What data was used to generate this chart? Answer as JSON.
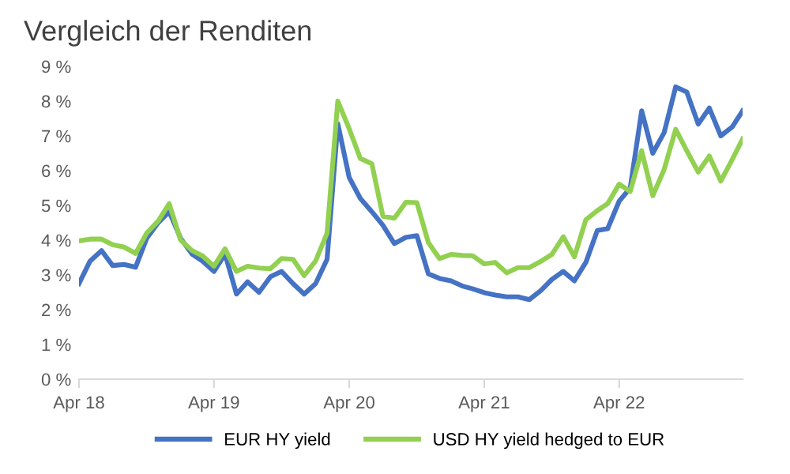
{
  "chart_data": {
    "type": "line",
    "title": "Vergleich der Renditen",
    "x": [
      "2018-04",
      "2018-05",
      "2018-06",
      "2018-07",
      "2018-08",
      "2018-09",
      "2018-10",
      "2018-11",
      "2018-12",
      "2019-01",
      "2019-02",
      "2019-03",
      "2019-04",
      "2019-05",
      "2019-06",
      "2019-07",
      "2019-08",
      "2019-09",
      "2019-10",
      "2019-11",
      "2019-12",
      "2020-01",
      "2020-02",
      "2020-03",
      "2020-04",
      "2020-05",
      "2020-06",
      "2020-07",
      "2020-08",
      "2020-09",
      "2020-10",
      "2020-11",
      "2020-12",
      "2021-01",
      "2021-02",
      "2021-03",
      "2021-04",
      "2021-05",
      "2021-06",
      "2021-07",
      "2021-08",
      "2021-09",
      "2021-10",
      "2021-11",
      "2021-12",
      "2022-01",
      "2022-02",
      "2022-03",
      "2022-04",
      "2022-05",
      "2022-06",
      "2022-07",
      "2022-08",
      "2022-09",
      "2022-10",
      "2022-11",
      "2022-12",
      "2023-01",
      "2023-02",
      "2023-03"
    ],
    "series": [
      {
        "name": "EUR HY yield",
        "color": "#4472c4",
        "values": [
          2.75,
          3.4,
          3.7,
          3.27,
          3.3,
          3.22,
          4.05,
          4.5,
          4.82,
          4.05,
          3.6,
          3.4,
          3.1,
          3.6,
          2.45,
          2.8,
          2.5,
          2.95,
          3.1,
          2.75,
          2.45,
          2.75,
          3.45,
          7.35,
          5.8,
          5.2,
          4.82,
          4.43,
          3.9,
          4.08,
          4.13,
          3.03,
          2.9,
          2.83,
          2.68,
          2.6,
          2.49,
          2.42,
          2.37,
          2.37,
          2.29,
          2.55,
          2.87,
          3.1,
          2.83,
          3.36,
          4.28,
          4.33,
          5.12,
          5.5,
          7.72,
          6.5,
          7.1,
          8.41,
          8.26,
          7.34,
          7.8,
          7.0,
          7.26,
          7.72
        ]
      },
      {
        "name": "USD HY yield hedged to EUR",
        "color": "#92d050",
        "values": [
          3.98,
          4.03,
          4.03,
          3.87,
          3.8,
          3.62,
          4.2,
          4.55,
          5.05,
          4.0,
          3.7,
          3.55,
          3.25,
          3.75,
          3.1,
          3.25,
          3.2,
          3.18,
          3.47,
          3.45,
          2.98,
          3.4,
          4.2,
          8.0,
          7.2,
          6.35,
          6.2,
          4.69,
          4.63,
          5.09,
          5.08,
          3.93,
          3.47,
          3.59,
          3.56,
          3.55,
          3.32,
          3.36,
          3.06,
          3.21,
          3.21,
          3.39,
          3.59,
          4.1,
          3.52,
          4.59,
          4.85,
          5.05,
          5.61,
          5.4,
          6.57,
          5.28,
          6.04,
          7.19,
          6.57,
          5.96,
          6.42,
          5.7,
          6.32,
          6.91
        ]
      }
    ],
    "xlim": [
      "2018-04",
      "2023-03"
    ],
    "xticks": [
      {
        "value": "2018-04",
        "label": "Apr 18"
      },
      {
        "value": "2019-04",
        "label": "Apr 19"
      },
      {
        "value": "2020-04",
        "label": "Apr 20"
      },
      {
        "value": "2021-04",
        "label": "Apr 21"
      },
      {
        "value": "2022-04",
        "label": "Apr 22"
      }
    ],
    "ylim": [
      0,
      9
    ],
    "yticks": [
      {
        "value": 0,
        "label": "0 %"
      },
      {
        "value": 1,
        "label": "1 %"
      },
      {
        "value": 2,
        "label": "2 %"
      },
      {
        "value": 3,
        "label": "3 %"
      },
      {
        "value": 4,
        "label": "4 %"
      },
      {
        "value": 5,
        "label": "5 %"
      },
      {
        "value": 6,
        "label": "6 %"
      },
      {
        "value": 7,
        "label": "7 %"
      },
      {
        "value": 8,
        "label": "8 %"
      },
      {
        "value": 9,
        "label": "9 %"
      }
    ],
    "grid": false,
    "legend": "bottom",
    "line_style": "solid"
  }
}
